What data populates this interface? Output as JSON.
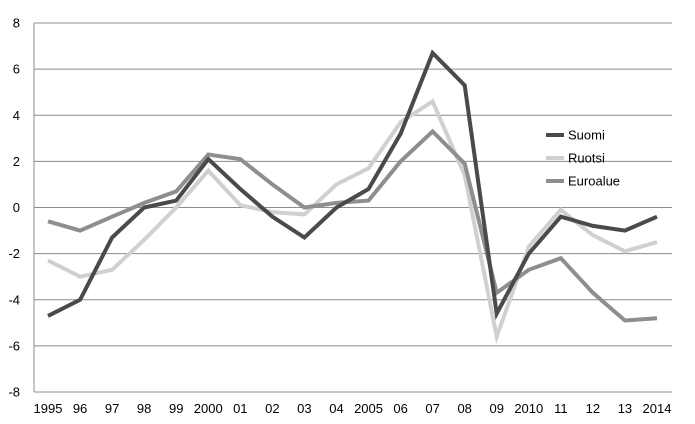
{
  "chart_data": {
    "type": "line",
    "title": "",
    "xlabel": "",
    "ylabel": "",
    "categories": [
      "1995",
      "96",
      "97",
      "98",
      "99",
      "2000",
      "01",
      "02",
      "03",
      "04",
      "2005",
      "06",
      "07",
      "08",
      "09",
      "2010",
      "11",
      "12",
      "13",
      "2014"
    ],
    "ylim": [
      -8,
      8
    ],
    "yticks": [
      8,
      6,
      4,
      2,
      0,
      -2,
      -4,
      -6,
      -8
    ],
    "grid": true,
    "legend_position": "right",
    "series": [
      {
        "name": "Suomi",
        "color": "#4a4a4a",
        "values": [
          -4.7,
          -4.0,
          -1.3,
          0.0,
          0.3,
          2.1,
          0.8,
          -0.4,
          -1.3,
          0.0,
          0.8,
          3.2,
          6.7,
          5.3,
          -4.6,
          -2.0,
          -0.4,
          -0.8,
          -1.0,
          -0.4
        ]
      },
      {
        "name": "Ruotsi",
        "color": "#d0d0d0",
        "values": [
          -2.3,
          -3.0,
          -2.7,
          -1.4,
          0.0,
          1.6,
          0.1,
          -0.2,
          -0.3,
          1.0,
          1.7,
          3.7,
          4.6,
          1.4,
          -5.6,
          -1.7,
          -0.1,
          -1.2,
          -1.9,
          -1.5
        ]
      },
      {
        "name": "Euroalue",
        "color": "#8e8e8e",
        "values": [
          -0.6,
          -1.0,
          -0.4,
          0.2,
          0.7,
          2.3,
          2.1,
          1.0,
          0.0,
          0.2,
          0.3,
          2.0,
          3.3,
          1.9,
          -3.7,
          -2.7,
          -2.2,
          -3.7,
          -4.9,
          -4.8
        ]
      }
    ]
  }
}
